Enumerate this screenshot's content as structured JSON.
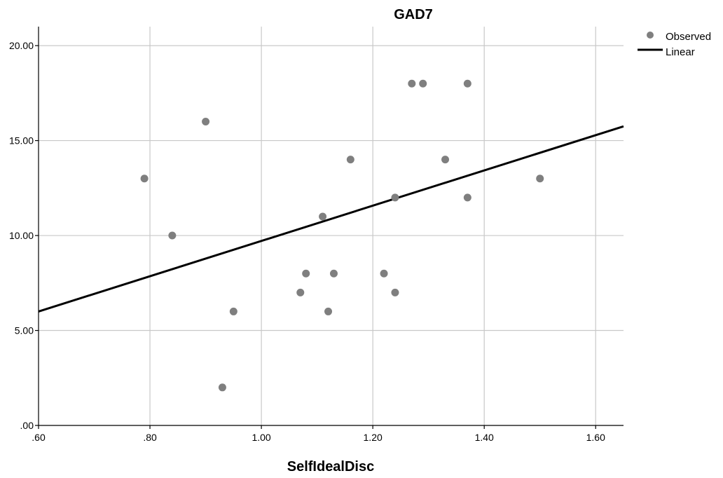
{
  "chart_data": {
    "type": "scatter",
    "title": "GAD7",
    "xlabel": "SelfIdealDisc",
    "ylabel": "",
    "xlim": [
      0.6,
      1.65
    ],
    "ylim": [
      0,
      21
    ],
    "x_ticks": [
      ".60",
      ".80",
      "1.00",
      "1.20",
      "1.40",
      "1.60"
    ],
    "x_tick_values": [
      0.6,
      0.8,
      1.0,
      1.2,
      1.4,
      1.6
    ],
    "y_ticks": [
      ".00",
      "5.00",
      "10.00",
      "15.00",
      "20.00"
    ],
    "y_tick_values": [
      0,
      5,
      10,
      15,
      20
    ],
    "grid": true,
    "legend_position": "top-right",
    "series": [
      {
        "name": "Observed",
        "kind": "points",
        "color": "#7f7f7f",
        "points": [
          {
            "x": 0.79,
            "y": 13
          },
          {
            "x": 0.84,
            "y": 10
          },
          {
            "x": 0.9,
            "y": 16
          },
          {
            "x": 0.93,
            "y": 2
          },
          {
            "x": 0.95,
            "y": 6
          },
          {
            "x": 1.07,
            "y": 7
          },
          {
            "x": 1.08,
            "y": 8
          },
          {
            "x": 1.11,
            "y": 11
          },
          {
            "x": 1.12,
            "y": 6
          },
          {
            "x": 1.13,
            "y": 8
          },
          {
            "x": 1.16,
            "y": 14
          },
          {
            "x": 1.22,
            "y": 8
          },
          {
            "x": 1.24,
            "y": 12
          },
          {
            "x": 1.24,
            "y": 7
          },
          {
            "x": 1.27,
            "y": 18
          },
          {
            "x": 1.29,
            "y": 18
          },
          {
            "x": 1.33,
            "y": 14
          },
          {
            "x": 1.37,
            "y": 18
          },
          {
            "x": 1.37,
            "y": 12
          },
          {
            "x": 1.5,
            "y": 13
          }
        ]
      },
      {
        "name": "Linear",
        "kind": "line",
        "color": "#000000",
        "points": [
          {
            "x": 0.6,
            "y": 6.0
          },
          {
            "x": 1.65,
            "y": 15.75
          }
        ]
      }
    ]
  }
}
